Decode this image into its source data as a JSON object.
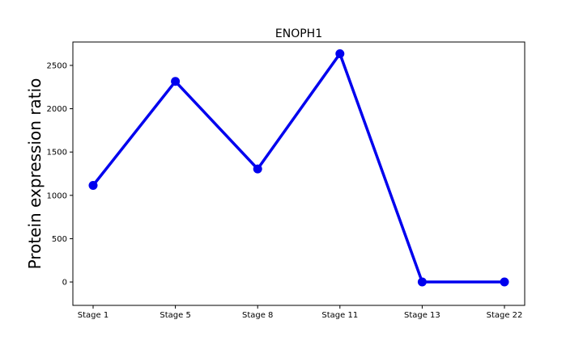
{
  "chart_data": {
    "type": "line",
    "title": "ENOPH1",
    "xlabel": "",
    "ylabel": "Protein expression ratio",
    "categories": [
      "Stage 1",
      "Stage 5",
      "Stage 8",
      "Stage 11",
      "Stage 13",
      "Stage 22"
    ],
    "series": [
      {
        "values": [
          1115,
          2315,
          1305,
          2635,
          0,
          0
        ]
      }
    ],
    "ylim": [
      -270,
      2770
    ],
    "yticks": [
      0,
      500,
      1000,
      1500,
      2000,
      2500
    ],
    "grid": false,
    "legend": "none",
    "line_color": "#0000ee"
  }
}
